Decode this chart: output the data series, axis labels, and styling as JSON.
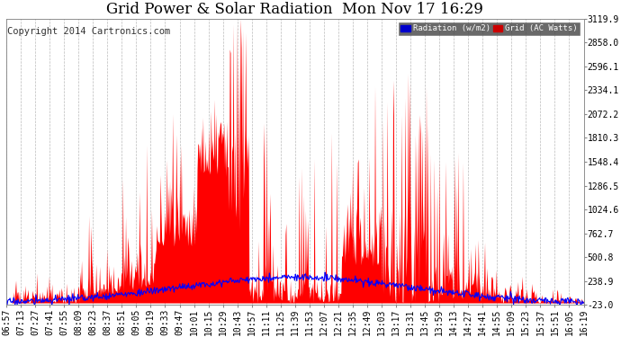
{
  "title": "Grid Power & Solar Radiation  Mon Nov 17 16:29",
  "copyright": "Copyright 2014 Cartronics.com",
  "ylabel_right_values": [
    3119.9,
    2858.0,
    2596.1,
    2334.1,
    2072.2,
    1810.3,
    1548.4,
    1286.5,
    1024.6,
    762.7,
    500.8,
    238.9,
    -23.0
  ],
  "ylim": [
    -23.0,
    3119.9
  ],
  "background_color": "#ffffff",
  "plot_bg_color": "#ffffff",
  "grid_color": "#bbbbbb",
  "radiation_color": "#0000ff",
  "grid_power_color": "#ff0000",
  "legend_radiation_bg": "#0000cc",
  "legend_grid_bg": "#cc0000",
  "x_tick_labels": [
    "06:57",
    "07:13",
    "07:27",
    "07:41",
    "07:55",
    "08:09",
    "08:23",
    "08:37",
    "08:51",
    "09:05",
    "09:19",
    "09:33",
    "09:47",
    "10:01",
    "10:15",
    "10:29",
    "10:43",
    "10:57",
    "11:11",
    "11:25",
    "11:39",
    "11:53",
    "12:07",
    "12:21",
    "12:35",
    "12:49",
    "13:03",
    "13:17",
    "13:31",
    "13:45",
    "13:59",
    "14:13",
    "14:27",
    "14:41",
    "14:55",
    "15:09",
    "15:23",
    "15:37",
    "15:51",
    "16:05",
    "16:19"
  ],
  "n_points": 800,
  "title_fontsize": 12,
  "tick_fontsize": 7,
  "copyright_fontsize": 7.5,
  "figsize": [
    6.9,
    3.75
  ],
  "dpi": 100
}
